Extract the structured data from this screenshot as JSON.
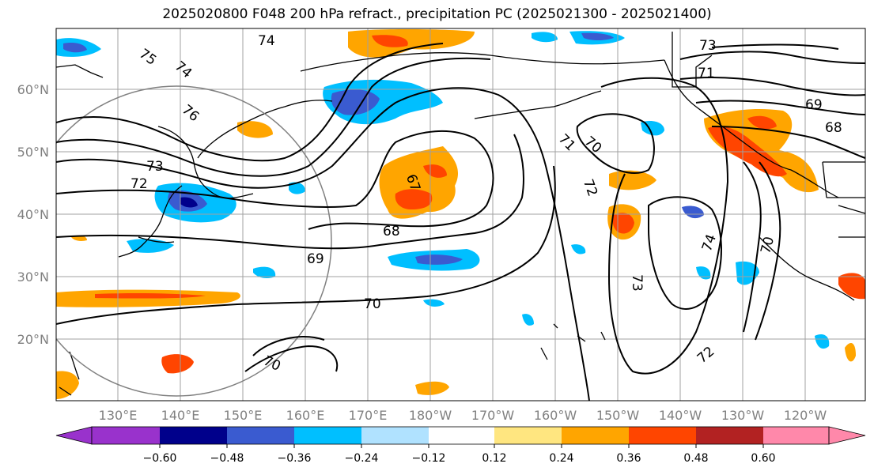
{
  "title": "2025020800 F048 200 hPa refract., precipitation PC (2025021300 - 2025021400)",
  "lat_labels": [
    "60°N",
    "50°N",
    "40°N",
    "30°N",
    "20°N"
  ],
  "lon_labels": [
    "130°E",
    "140°E",
    "150°E",
    "160°E",
    "170°E",
    "180°W",
    "170°W",
    "160°W",
    "150°W",
    "140°W",
    "130°W",
    "120°W"
  ],
  "contour_labels": [
    "74",
    "75",
    "74",
    "76",
    "73",
    "72",
    "67",
    "68",
    "69",
    "70",
    "70",
    "71",
    "70",
    "72",
    "73",
    "74",
    "73",
    "71",
    "69",
    "68",
    "70",
    "72"
  ],
  "colorbar": {
    "tick_labels": [
      "−0.60",
      "−0.48",
      "−0.36",
      "−0.24",
      "−0.12",
      "0.12",
      "0.24",
      "0.36",
      "0.48",
      "0.60"
    ],
    "colors": [
      "#9932cc",
      "#00008b",
      "#3a5bd0",
      "#00bfff",
      "#b0e2ff",
      "#ffffff",
      "#ffe680",
      "#ffa500",
      "#ff4500",
      "#b22222",
      "#ff88aa"
    ]
  }
}
